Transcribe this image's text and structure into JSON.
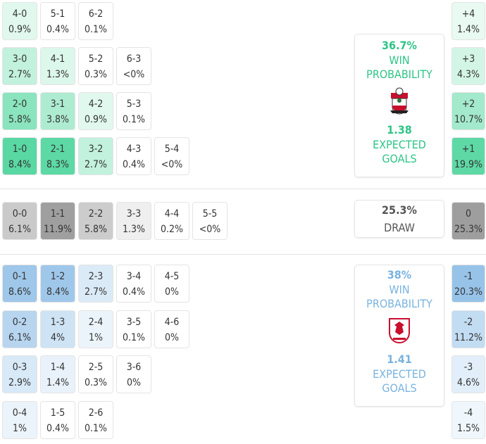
{
  "colors": {
    "home": "#2ec486",
    "away": "#7ab3de",
    "draw": "#555555"
  },
  "home": {
    "win_pct": "36.7%",
    "win_label": "WIN PROBABILITY",
    "xg": "1.38",
    "xg_label": "EXPECTED GOALS",
    "crest": "southampton-crest",
    "rows": [
      [
        {
          "score": "4-0",
          "pct": "0.9%"
        },
        {
          "score": "5-1",
          "pct": "0.4%"
        },
        {
          "score": "6-2",
          "pct": "0.1%"
        }
      ],
      [
        {
          "score": "3-0",
          "pct": "2.7%"
        },
        {
          "score": "4-1",
          "pct": "1.3%"
        },
        {
          "score": "5-2",
          "pct": "0.3%"
        },
        {
          "score": "6-3",
          "pct": "<0%"
        }
      ],
      [
        {
          "score": "2-0",
          "pct": "5.8%"
        },
        {
          "score": "3-1",
          "pct": "3.8%"
        },
        {
          "score": "4-2",
          "pct": "0.9%"
        },
        {
          "score": "5-3",
          "pct": "0.1%"
        }
      ],
      [
        {
          "score": "1-0",
          "pct": "8.4%"
        },
        {
          "score": "2-1",
          "pct": "8.3%"
        },
        {
          "score": "3-2",
          "pct": "2.7%"
        },
        {
          "score": "4-3",
          "pct": "0.4%"
        },
        {
          "score": "5-4",
          "pct": "<0%"
        }
      ]
    ],
    "margins": [
      {
        "label": "+4",
        "pct": "1.4%"
      },
      {
        "label": "+3",
        "pct": "4.3%"
      },
      {
        "label": "+2",
        "pct": "10.7%"
      },
      {
        "label": "+1",
        "pct": "19.9%"
      }
    ]
  },
  "draw": {
    "pct": "25.3%",
    "label": "DRAW",
    "row": [
      {
        "score": "0-0",
        "pct": "6.1%"
      },
      {
        "score": "1-1",
        "pct": "11.9%"
      },
      {
        "score": "2-2",
        "pct": "5.8%"
      },
      {
        "score": "3-3",
        "pct": "1.3%"
      },
      {
        "score": "4-4",
        "pct": "0.2%"
      },
      {
        "score": "5-5",
        "pct": "<0%"
      }
    ],
    "margin": {
      "label": "0",
      "pct": "25.3%"
    }
  },
  "away": {
    "win_pct": "38%",
    "win_label": "WIN PROBABILITY",
    "xg": "1.41",
    "xg_label": "EXPECTED GOALS",
    "crest": "middlesbrough-crest",
    "rows": [
      [
        {
          "score": "0-1",
          "pct": "8.6%"
        },
        {
          "score": "1-2",
          "pct": "8.4%"
        },
        {
          "score": "2-3",
          "pct": "2.7%"
        },
        {
          "score": "3-4",
          "pct": "0.4%"
        },
        {
          "score": "4-5",
          "pct": "0%"
        }
      ],
      [
        {
          "score": "0-2",
          "pct": "6.1%"
        },
        {
          "score": "1-3",
          "pct": "4%"
        },
        {
          "score": "2-4",
          "pct": "1%"
        },
        {
          "score": "3-5",
          "pct": "0.1%"
        },
        {
          "score": "4-6",
          "pct": "0%"
        }
      ],
      [
        {
          "score": "0-3",
          "pct": "2.9%"
        },
        {
          "score": "1-4",
          "pct": "1.4%"
        },
        {
          "score": "2-5",
          "pct": "0.3%"
        },
        {
          "score": "3-6",
          "pct": "0%"
        }
      ],
      [
        {
          "score": "0-4",
          "pct": "1%"
        },
        {
          "score": "1-5",
          "pct": "0.4%"
        },
        {
          "score": "2-6",
          "pct": "0.1%"
        }
      ]
    ],
    "margins": [
      {
        "label": "-1",
        "pct": "20.3%"
      },
      {
        "label": "-2",
        "pct": "11.2%"
      },
      {
        "label": "-3",
        "pct": "4.6%"
      },
      {
        "label": "-4",
        "pct": "1.5%"
      }
    ]
  }
}
